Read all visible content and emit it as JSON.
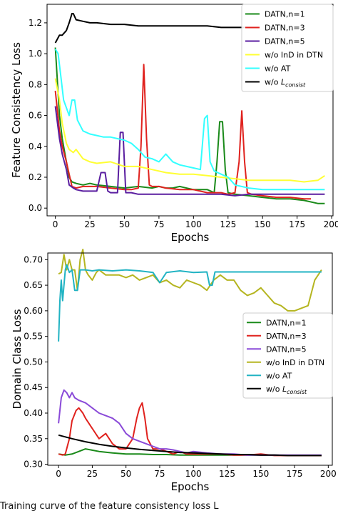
{
  "chart_data": [
    {
      "type": "line",
      "ylabel": "Feature Consistency Loss",
      "xlabel": "Epochs",
      "xlim": [
        -6,
        201
      ],
      "ylim": [
        -0.05,
        1.32
      ],
      "xticks": [
        0,
        25,
        50,
        75,
        100,
        125,
        150,
        175,
        200
      ],
      "yticks": [
        0.0,
        0.2,
        0.4,
        0.6,
        0.8,
        1.0,
        1.2
      ],
      "grid": false,
      "legend_position": "top-right",
      "series": [
        {
          "name": "DATN,n=1",
          "color": "#1a8a1a",
          "x": [
            0,
            3,
            5,
            8,
            10,
            12,
            15,
            20,
            25,
            30,
            40,
            50,
            60,
            70,
            75,
            80,
            85,
            90,
            100,
            110,
            115,
            117,
            119,
            121,
            123,
            125,
            130,
            140,
            150,
            160,
            170,
            180,
            190,
            195
          ],
          "y": [
            1.04,
            0.6,
            0.45,
            0.3,
            0.2,
            0.17,
            0.16,
            0.15,
            0.16,
            0.15,
            0.14,
            0.13,
            0.14,
            0.13,
            0.14,
            0.13,
            0.13,
            0.14,
            0.12,
            0.12,
            0.1,
            0.3,
            0.56,
            0.56,
            0.25,
            0.1,
            0.09,
            0.08,
            0.07,
            0.06,
            0.06,
            0.05,
            0.03,
            0.03
          ]
        },
        {
          "name": "DATN,n=3",
          "color": "#e0221e",
          "x": [
            0,
            3,
            5,
            8,
            10,
            12,
            15,
            20,
            30,
            40,
            50,
            55,
            60,
            62,
            64,
            66,
            68,
            70,
            75,
            80,
            90,
            100,
            110,
            120,
            125,
            130,
            133,
            135,
            137,
            139,
            142,
            150,
            160,
            170,
            180,
            185
          ],
          "y": [
            0.76,
            0.5,
            0.4,
            0.3,
            0.22,
            0.14,
            0.13,
            0.14,
            0.14,
            0.13,
            0.12,
            0.12,
            0.13,
            0.4,
            0.93,
            0.45,
            0.15,
            0.14,
            0.14,
            0.13,
            0.12,
            0.12,
            0.1,
            0.1,
            0.09,
            0.1,
            0.3,
            0.63,
            0.3,
            0.1,
            0.09,
            0.08,
            0.07,
            0.07,
            0.06,
            0.06
          ]
        },
        {
          "name": "DATN,n=5",
          "color": "#5a1ea0",
          "x": [
            0,
            3,
            5,
            8,
            10,
            13,
            15,
            20,
            25,
            30,
            33,
            36,
            38,
            40,
            45,
            47,
            49,
            51,
            55,
            60,
            70,
            80,
            90,
            100,
            110,
            120,
            130,
            140,
            150,
            160,
            170,
            180,
            190,
            195
          ],
          "y": [
            0.66,
            0.45,
            0.35,
            0.25,
            0.15,
            0.13,
            0.12,
            0.11,
            0.11,
            0.11,
            0.23,
            0.23,
            0.11,
            0.1,
            0.1,
            0.49,
            0.49,
            0.1,
            0.1,
            0.09,
            0.09,
            0.09,
            0.09,
            0.09,
            0.09,
            0.09,
            0.08,
            0.09,
            0.09,
            0.09,
            0.09,
            0.09,
            0.09,
            0.09
          ]
        },
        {
          "name": "w/o InD in DTN",
          "color": "#ffff33",
          "x": [
            0,
            3,
            5,
            8,
            10,
            13,
            15,
            20,
            25,
            30,
            40,
            50,
            60,
            70,
            80,
            90,
            100,
            110,
            120,
            130,
            140,
            150,
            160,
            170,
            180,
            190,
            195
          ],
          "y": [
            0.84,
            0.7,
            0.55,
            0.42,
            0.38,
            0.36,
            0.38,
            0.32,
            0.3,
            0.29,
            0.3,
            0.27,
            0.27,
            0.25,
            0.23,
            0.22,
            0.22,
            0.21,
            0.2,
            0.19,
            0.18,
            0.18,
            0.18,
            0.18,
            0.17,
            0.18,
            0.21
          ]
        },
        {
          "name": "w/o AT",
          "color": "#33ffff",
          "x": [
            0,
            2,
            4,
            6,
            8,
            10,
            12,
            14,
            16,
            20,
            25,
            30,
            35,
            40,
            45,
            50,
            55,
            60,
            65,
            70,
            75,
            80,
            85,
            90,
            95,
            100,
            105,
            108,
            110,
            112,
            115,
            120,
            125,
            130,
            140,
            150,
            160,
            170,
            180,
            190,
            195
          ],
          "y": [
            1.03,
            1.0,
            0.85,
            0.7,
            0.65,
            0.6,
            0.7,
            0.7,
            0.57,
            0.5,
            0.48,
            0.47,
            0.46,
            0.46,
            0.45,
            0.44,
            0.42,
            0.38,
            0.33,
            0.32,
            0.3,
            0.35,
            0.3,
            0.28,
            0.27,
            0.26,
            0.25,
            0.58,
            0.6,
            0.3,
            0.24,
            0.22,
            0.2,
            0.15,
            0.13,
            0.12,
            0.12,
            0.12,
            0.12,
            0.12,
            0.12
          ]
        },
        {
          "name": "w/o L_consist",
          "color": "#000000",
          "x": [
            0,
            3,
            5,
            8,
            10,
            12,
            13,
            15,
            20,
            25,
            30,
            40,
            50,
            60,
            70,
            80,
            90,
            100,
            110,
            120,
            130,
            140
          ],
          "y": [
            1.07,
            1.12,
            1.12,
            1.15,
            1.2,
            1.26,
            1.26,
            1.22,
            1.21,
            1.2,
            1.2,
            1.19,
            1.19,
            1.18,
            1.18,
            1.18,
            1.18,
            1.18,
            1.18,
            1.17,
            1.17,
            1.17
          ]
        }
      ]
    },
    {
      "type": "line",
      "ylabel": "Domain Class Loss",
      "xlabel": "Epochs",
      "xlim": [
        -8,
        203
      ],
      "ylim": [
        0.298,
        0.713
      ],
      "xticks": [
        0,
        25,
        50,
        75,
        100,
        125,
        150,
        175,
        200
      ],
      "yticks": [
        0.3,
        0.35,
        0.4,
        0.45,
        0.5,
        0.55,
        0.6,
        0.65,
        0.7
      ],
      "grid": false,
      "legend_position": "center-right",
      "series": [
        {
          "name": "DATN,n=1",
          "color": "#1a8a1a",
          "x": [
            0,
            5,
            10,
            15,
            20,
            30,
            40,
            50,
            60,
            70,
            80,
            90,
            100,
            110,
            120,
            130,
            140,
            150,
            160,
            170,
            180,
            190,
            195
          ],
          "y": [
            0.32,
            0.318,
            0.32,
            0.325,
            0.33,
            0.325,
            0.322,
            0.32,
            0.32,
            0.319,
            0.319,
            0.318,
            0.318,
            0.318,
            0.318,
            0.318,
            0.318,
            0.318,
            0.318,
            0.317,
            0.317,
            0.317,
            0.317
          ]
        },
        {
          "name": "DATN,n=3",
          "color": "#e0221e",
          "x": [
            0,
            3,
            5,
            8,
            10,
            13,
            15,
            18,
            20,
            25,
            30,
            35,
            40,
            45,
            50,
            55,
            58,
            60,
            62,
            64,
            66,
            70,
            75,
            80,
            85,
            90,
            95,
            100,
            110,
            120,
            130,
            140,
            150,
            160,
            170,
            180,
            190,
            195
          ],
          "y": [
            0.32,
            0.318,
            0.32,
            0.35,
            0.385,
            0.405,
            0.41,
            0.4,
            0.39,
            0.37,
            0.35,
            0.36,
            0.34,
            0.33,
            0.33,
            0.35,
            0.39,
            0.41,
            0.42,
            0.39,
            0.35,
            0.33,
            0.33,
            0.325,
            0.32,
            0.325,
            0.32,
            0.32,
            0.32,
            0.32,
            0.318,
            0.318,
            0.32,
            0.317,
            0.317,
            0.317,
            0.317,
            0.317
          ]
        },
        {
          "name": "DATN,n=5",
          "color": "#8a4ad8",
          "x": [
            0,
            2,
            4,
            6,
            8,
            10,
            12,
            15,
            20,
            25,
            30,
            35,
            40,
            45,
            50,
            55,
            60,
            65,
            70,
            75,
            80,
            85,
            90,
            95,
            100,
            110,
            120,
            130,
            140,
            150,
            160,
            170,
            180,
            190,
            195
          ],
          "y": [
            0.38,
            0.43,
            0.445,
            0.44,
            0.43,
            0.44,
            0.43,
            0.425,
            0.42,
            0.41,
            0.4,
            0.395,
            0.39,
            0.38,
            0.36,
            0.35,
            0.345,
            0.34,
            0.335,
            0.33,
            0.33,
            0.328,
            0.325,
            0.322,
            0.325,
            0.322,
            0.32,
            0.32,
            0.318,
            0.318,
            0.318,
            0.318,
            0.318,
            0.318,
            0.318
          ]
        },
        {
          "name": "w/o InD in DTN",
          "color": "#b5b520",
          "x": [
            0,
            2,
            4,
            6,
            8,
            10,
            12,
            14,
            16,
            18,
            20,
            22,
            25,
            28,
            30,
            35,
            40,
            45,
            50,
            55,
            60,
            65,
            70,
            75,
            80,
            85,
            90,
            95,
            100,
            105,
            110,
            115,
            120,
            125,
            130,
            135,
            140,
            145,
            150,
            155,
            160,
            165,
            170,
            175,
            180,
            185,
            190,
            195
          ],
          "y": [
            0.672,
            0.675,
            0.71,
            0.68,
            0.7,
            0.68,
            0.68,
            0.64,
            0.7,
            0.72,
            0.68,
            0.67,
            0.66,
            0.675,
            0.68,
            0.67,
            0.67,
            0.67,
            0.665,
            0.67,
            0.66,
            0.665,
            0.67,
            0.655,
            0.66,
            0.65,
            0.645,
            0.66,
            0.655,
            0.65,
            0.64,
            0.66,
            0.67,
            0.66,
            0.66,
            0.64,
            0.63,
            0.635,
            0.645,
            0.63,
            0.615,
            0.61,
            0.6,
            0.6,
            0.605,
            0.61,
            0.66,
            0.68
          ]
        },
        {
          "name": "w/o AT",
          "color": "#21b3c3",
          "x": [
            0,
            1,
            2,
            3,
            4,
            5,
            6,
            8,
            10,
            12,
            14,
            16,
            20,
            25,
            30,
            40,
            50,
            60,
            70,
            75,
            80,
            90,
            100,
            110,
            112,
            114,
            116,
            120,
            130,
            140,
            150,
            160,
            170,
            180,
            190,
            195
          ],
          "y": [
            0.54,
            0.62,
            0.66,
            0.62,
            0.65,
            0.68,
            0.69,
            0.675,
            0.68,
            0.64,
            0.64,
            0.68,
            0.68,
            0.678,
            0.68,
            0.678,
            0.68,
            0.678,
            0.675,
            0.655,
            0.675,
            0.678,
            0.675,
            0.676,
            0.65,
            0.65,
            0.676,
            0.676,
            0.676,
            0.676,
            0.676,
            0.676,
            0.676,
            0.676,
            0.676,
            0.676
          ]
        },
        {
          "name": "w/o L_consist",
          "color": "#000000",
          "x": [
            0,
            10,
            20,
            30,
            40,
            50,
            60,
            70,
            80,
            90,
            100,
            110,
            120,
            130,
            140,
            150,
            160,
            170,
            180,
            190,
            195
          ],
          "y": [
            0.357,
            0.35,
            0.344,
            0.339,
            0.335,
            0.332,
            0.329,
            0.327,
            0.325,
            0.323,
            0.322,
            0.321,
            0.32,
            0.319,
            0.319,
            0.318,
            0.318,
            0.317,
            0.317,
            0.317,
            0.317
          ]
        }
      ]
    }
  ],
  "caption": "Training curve of the feature consistency loss L"
}
